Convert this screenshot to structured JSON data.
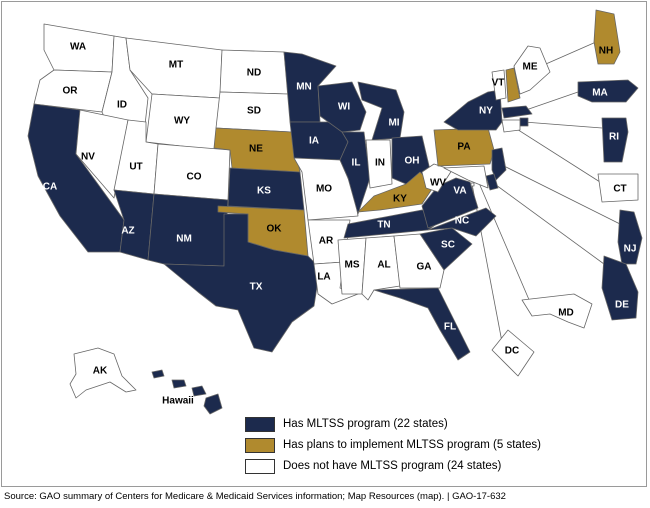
{
  "colors": {
    "mltss": "#1c2a4d",
    "plans": "#b08a2e",
    "none": "#ffffff",
    "border": "#666666"
  },
  "legend": [
    {
      "label": "Has MLTSS program (22 states)",
      "status": "mltss"
    },
    {
      "label": "Has plans to implement MLTSS program (5 states)",
      "status": "plans"
    },
    {
      "label": "Does not have MLTSS program (24 states)",
      "status": "none"
    }
  ],
  "states": [
    {
      "code": "WA",
      "status": "none"
    },
    {
      "code": "OR",
      "status": "none"
    },
    {
      "code": "CA",
      "status": "mltss"
    },
    {
      "code": "ID",
      "status": "none"
    },
    {
      "code": "NV",
      "status": "none"
    },
    {
      "code": "MT",
      "status": "none"
    },
    {
      "code": "WY",
      "status": "none"
    },
    {
      "code": "UT",
      "status": "none"
    },
    {
      "code": "AZ",
      "status": "mltss"
    },
    {
      "code": "CO",
      "status": "none"
    },
    {
      "code": "NM",
      "status": "mltss"
    },
    {
      "code": "ND",
      "status": "none"
    },
    {
      "code": "SD",
      "status": "none"
    },
    {
      "code": "NE",
      "status": "plans"
    },
    {
      "code": "KS",
      "status": "mltss"
    },
    {
      "code": "OK",
      "status": "plans"
    },
    {
      "code": "TX",
      "status": "mltss"
    },
    {
      "code": "MN",
      "status": "mltss"
    },
    {
      "code": "IA",
      "status": "mltss"
    },
    {
      "code": "MO",
      "status": "none"
    },
    {
      "code": "AR",
      "status": "none"
    },
    {
      "code": "LA",
      "status": "none"
    },
    {
      "code": "WI",
      "status": "mltss"
    },
    {
      "code": "IL",
      "status": "mltss"
    },
    {
      "code": "MI",
      "status": "mltss"
    },
    {
      "code": "IN",
      "status": "none"
    },
    {
      "code": "OH",
      "status": "mltss"
    },
    {
      "code": "KY",
      "status": "plans"
    },
    {
      "code": "TN",
      "status": "mltss"
    },
    {
      "code": "MS",
      "status": "none"
    },
    {
      "code": "AL",
      "status": "none"
    },
    {
      "code": "GA",
      "status": "none"
    },
    {
      "code": "FL",
      "status": "mltss"
    },
    {
      "code": "SC",
      "status": "mltss"
    },
    {
      "code": "NC",
      "status": "mltss"
    },
    {
      "code": "VA",
      "status": "mltss"
    },
    {
      "code": "WV",
      "status": "none"
    },
    {
      "code": "PA",
      "status": "plans"
    },
    {
      "code": "NY",
      "status": "mltss"
    },
    {
      "code": "VT",
      "status": "none"
    },
    {
      "code": "NH",
      "status": "plans"
    },
    {
      "code": "ME",
      "status": "none"
    },
    {
      "code": "MA",
      "status": "mltss"
    },
    {
      "code": "RI",
      "status": "mltss"
    },
    {
      "code": "CT",
      "status": "none"
    },
    {
      "code": "NJ",
      "status": "mltss"
    },
    {
      "code": "DE",
      "status": "mltss"
    },
    {
      "code": "MD",
      "status": "none"
    },
    {
      "code": "DC",
      "status": "none"
    },
    {
      "code": "AK",
      "status": "none"
    },
    {
      "code": "Hawaii",
      "status": "mltss"
    }
  ],
  "source": "Source: GAO summary of Centers for Medicare & Medicaid Services information; Map Resources (map).  |  GAO-17-632"
}
